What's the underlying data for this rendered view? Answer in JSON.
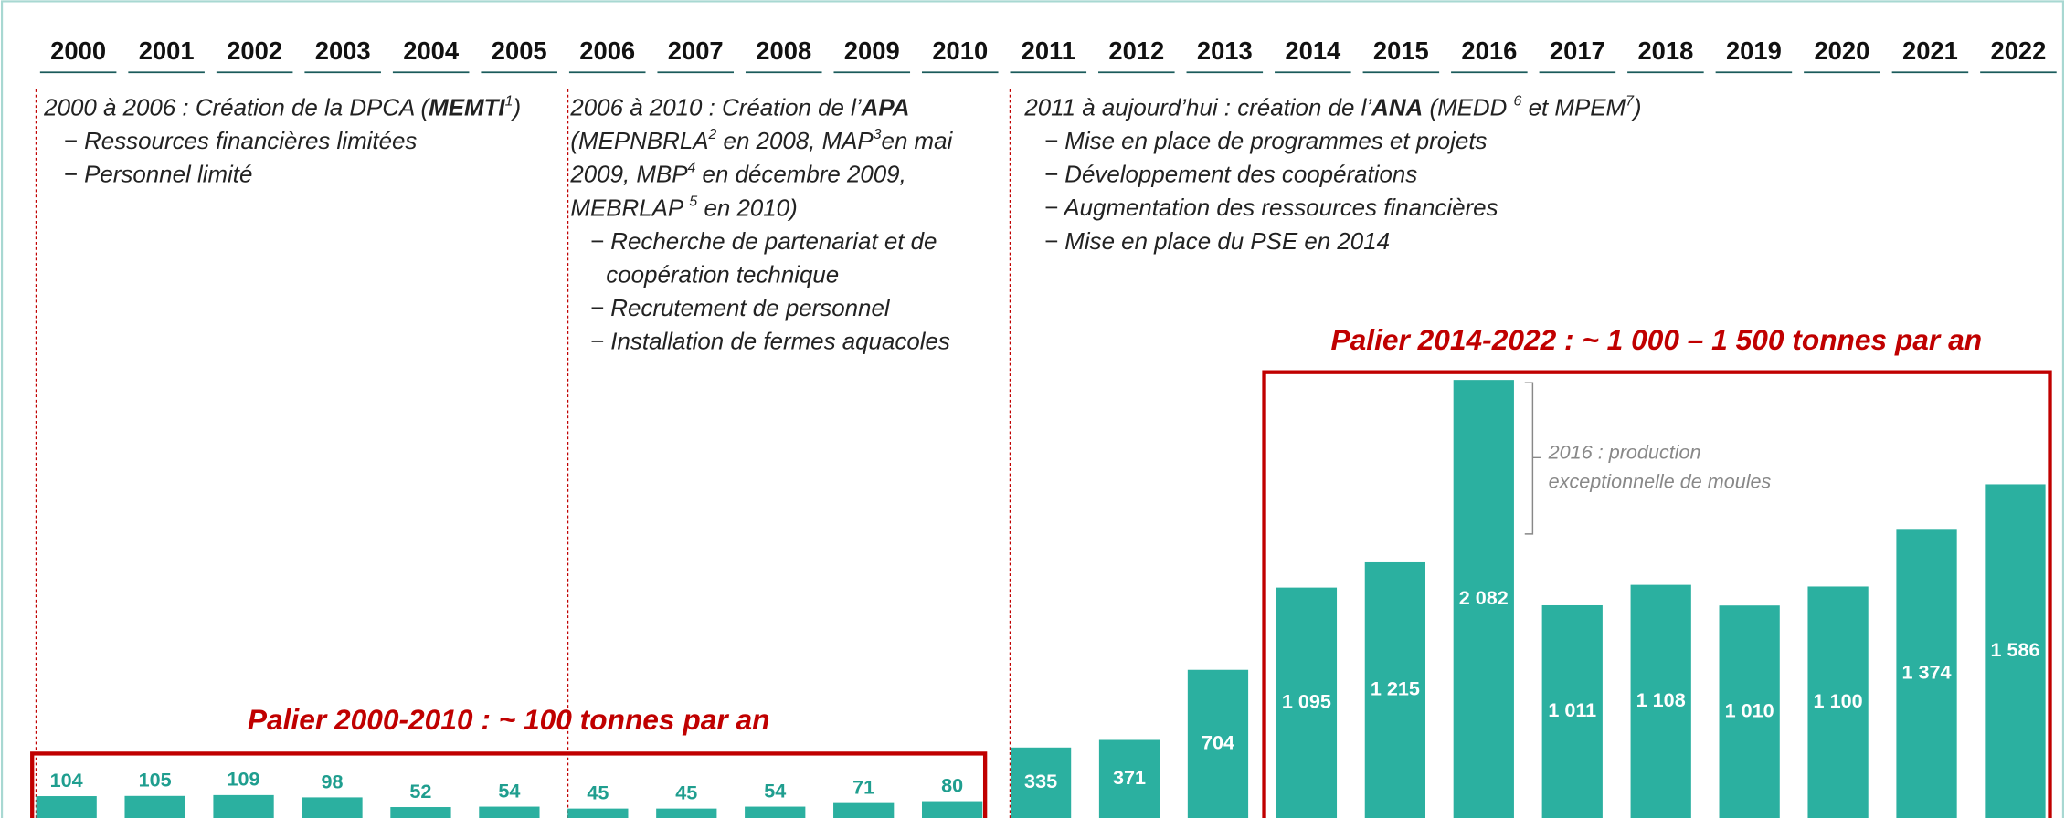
{
  "chart_data": {
    "type": "bar",
    "categories": [
      "2000",
      "2001",
      "2002",
      "2003",
      "2004",
      "2005",
      "2006",
      "2007",
      "2008",
      "2009",
      "2010",
      "2011",
      "2012",
      "2013",
      "2014",
      "2015",
      "2016",
      "2017",
      "2018",
      "2019",
      "2020",
      "2021",
      "2022"
    ],
    "values": [
      104,
      105,
      109,
      98,
      52,
      54,
      45,
      45,
      54,
      71,
      80,
      335,
      371,
      704,
      1095,
      1215,
      2082,
      1011,
      1108,
      1010,
      1100,
      1374,
      1586
    ],
    "value_labels": [
      "104",
      "105",
      "109",
      "98",
      "52",
      "54",
      "45",
      "45",
      "54",
      "71",
      "80",
      "335",
      "371",
      "704",
      "1 095",
      "1 215",
      "2 082",
      "1 011",
      "1 108",
      "1 010",
      "1 100",
      "1 374",
      "1 586"
    ],
    "color": "#2bb0a0",
    "ylim": [
      0,
      2100
    ]
  },
  "periods": [
    {
      "heading": [
        [
          "2000 à 2006 : Création de la DPCA (",
          {
            "b": "MEMTI"
          },
          {
            "sup": "1"
          },
          ")"
        ]
      ],
      "items": [
        [
          "− Ressources financières limitées"
        ],
        [
          "− Personnel limité"
        ]
      ]
    },
    {
      "heading": [
        [
          "2006 à 2010 : Création de l’",
          {
            "b": "APA"
          }
        ],
        [
          "(MEPNBRLA",
          {
            "sup": "2"
          },
          " en 2008, MAP",
          {
            "sup": "3"
          },
          "en mai"
        ],
        [
          "2009, MBP",
          {
            "sup": "4"
          },
          " en décembre 2009,"
        ],
        [
          "MEBRLAP ",
          {
            "sup": "5"
          },
          " en 2010)"
        ]
      ],
      "items": [
        [
          "− Recherche de partenariat et de",
          "coopération technique"
        ],
        [
          "− Recrutement de personnel"
        ],
        [
          "− Installation de fermes aquacoles"
        ]
      ]
    },
    {
      "heading": [
        [
          "2011 à aujourd’hui : création de l’",
          {
            "b": "ANA"
          },
          " (MEDD ",
          {
            "sup": "6"
          },
          " et MPEM",
          {
            "sup": "7"
          },
          ")"
        ]
      ],
      "items": [
        [
          "− Mise en place de programmes et projets"
        ],
        [
          "− Développement des coopérations"
        ],
        [
          "− Augmentation des ressources financières"
        ],
        [
          "− Mise en place du PSE  en 2014"
        ]
      ]
    }
  ],
  "plateaus": [
    "Palier 2000-2010 : ~ 100 tonnes par an",
    "Palier 2014-2022 : ~ 1 000 – 1 500 tonnes par an"
  ],
  "note": [
    "2016 : production",
    "exceptionnelle de moules"
  ]
}
